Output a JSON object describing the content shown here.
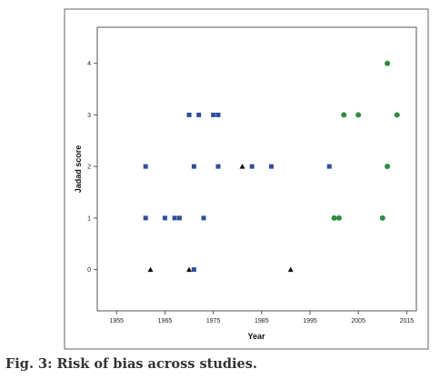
{
  "caption": "Fig. 3: Risk of bias across studies.",
  "chart_data": {
    "type": "scatter",
    "xlabel": "Year",
    "ylabel": "Jadad score",
    "xlim": [
      1951,
      2017
    ],
    "ylim": [
      -0.8,
      4.7
    ],
    "x_ticks": [
      1955,
      1965,
      1975,
      1985,
      1995,
      2005,
      2015
    ],
    "y_ticks": [
      0,
      1,
      2,
      3,
      4
    ],
    "grid": false,
    "legend": "none",
    "series": [
      {
        "marker": "square",
        "color": "#2f4f9a",
        "points": [
          {
            "x": 1961,
            "y": 2
          },
          {
            "x": 1961,
            "y": 1
          },
          {
            "x": 1965,
            "y": 1
          },
          {
            "x": 1967,
            "y": 1
          },
          {
            "x": 1968,
            "y": 1
          },
          {
            "x": 1970,
            "y": 3
          },
          {
            "x": 1971,
            "y": 2
          },
          {
            "x": 1972,
            "y": 3
          },
          {
            "x": 1971,
            "y": 0
          },
          {
            "x": 1973,
            "y": 1
          },
          {
            "x": 1975,
            "y": 3
          },
          {
            "x": 1976,
            "y": 3
          },
          {
            "x": 1976,
            "y": 2
          },
          {
            "x": 1983,
            "y": 2
          },
          {
            "x": 1987,
            "y": 2
          },
          {
            "x": 1999,
            "y": 2
          }
        ]
      },
      {
        "marker": "triangle",
        "color": "#111111",
        "points": [
          {
            "x": 1962,
            "y": 0
          },
          {
            "x": 1970,
            "y": 0
          },
          {
            "x": 1981,
            "y": 2
          },
          {
            "x": 1991,
            "y": 0
          }
        ]
      },
      {
        "marker": "circle",
        "color": "#2e8b3e",
        "points": [
          {
            "x": 2000,
            "y": 1
          },
          {
            "x": 2001,
            "y": 1
          },
          {
            "x": 2002,
            "y": 3
          },
          {
            "x": 2005,
            "y": 3
          },
          {
            "x": 2010,
            "y": 1
          },
          {
            "x": 2011,
            "y": 4
          },
          {
            "x": 2011,
            "y": 2
          },
          {
            "x": 2013,
            "y": 3
          }
        ]
      }
    ]
  }
}
